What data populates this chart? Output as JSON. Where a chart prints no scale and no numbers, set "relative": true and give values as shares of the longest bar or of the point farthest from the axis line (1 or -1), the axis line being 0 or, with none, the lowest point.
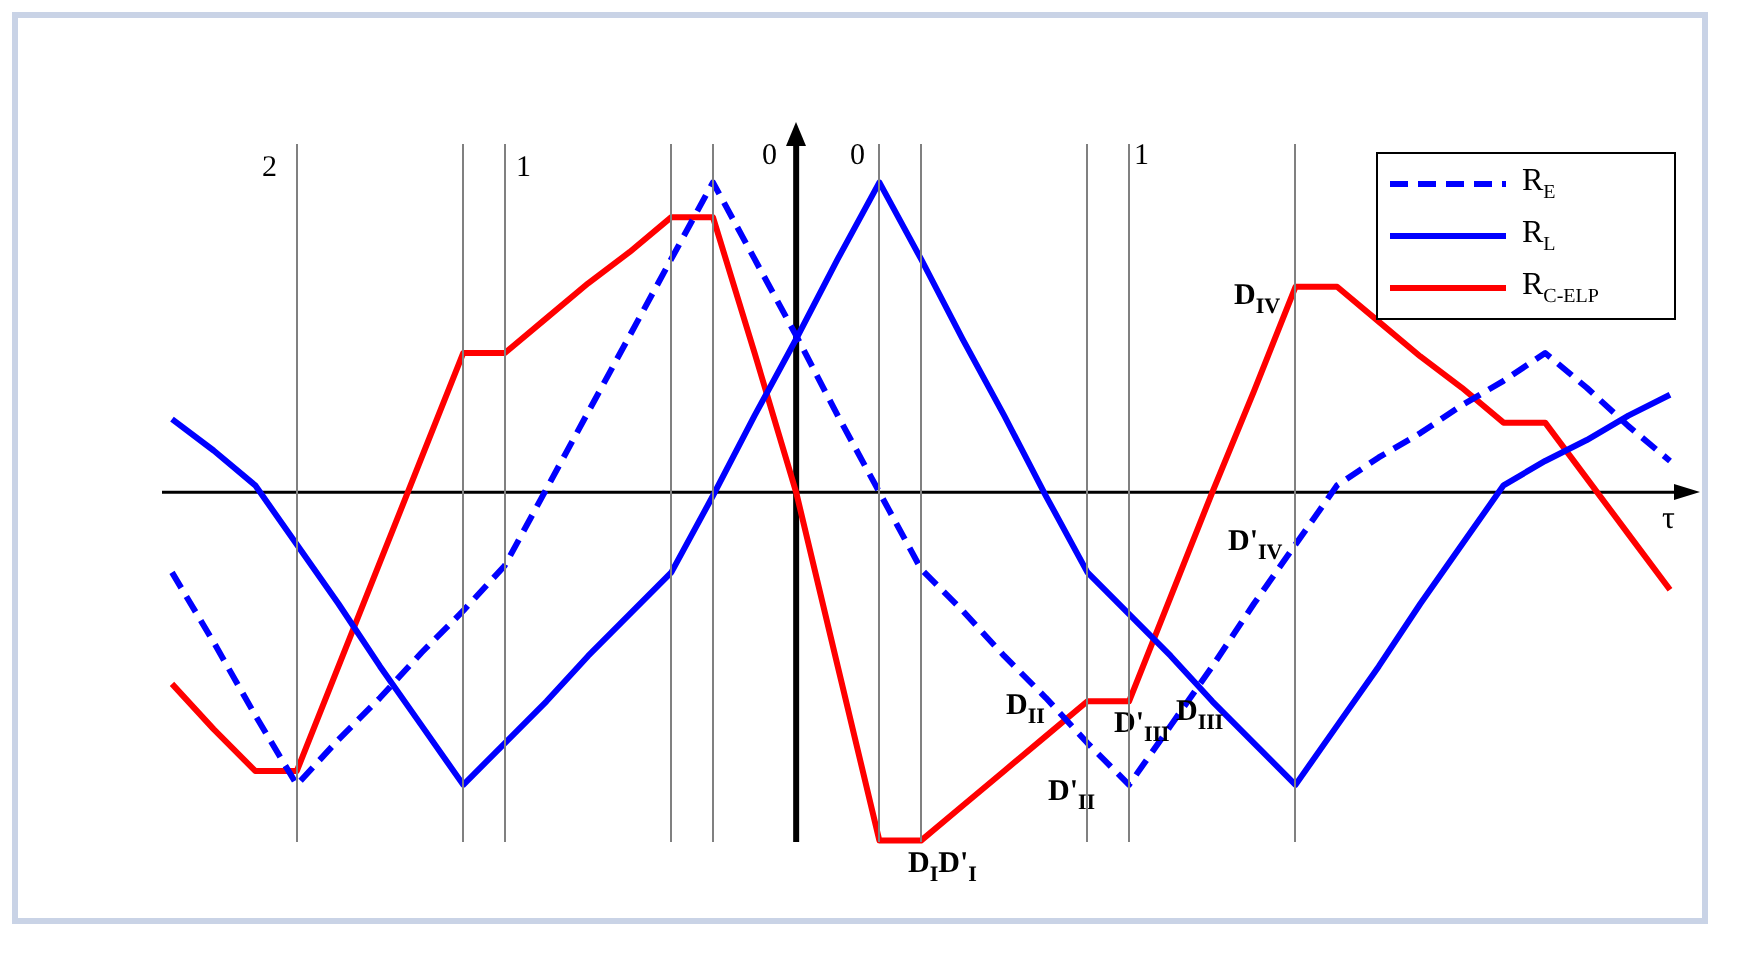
{
  "chart_data": {
    "type": "line",
    "relative": true,
    "xlabel": "τ",
    "legend": "top right",
    "marker": "none",
    "categories": [
      null,
      null,
      null,
      null,
      null,
      null,
      null,
      null,
      null,
      null,
      null,
      null,
      null,
      null,
      null,
      null,
      null,
      null,
      null,
      null,
      null,
      null,
      null,
      null,
      null,
      null,
      null,
      null,
      null,
      null,
      null,
      null,
      null,
      null,
      null,
      null,
      null
    ],
    "series": [
      {
        "name": "R$_{E}$",
        "color": "#0000ff",
        "line_style": "dashed",
        "values": [
          -0.23,
          -0.43,
          -0.64,
          -0.84,
          -0.71,
          -0.59,
          -0.46,
          -0.34,
          -0.21,
          0.01,
          0.23,
          0.45,
          0.67,
          0.89,
          0.67,
          0.45,
          0.22,
          0.0,
          -0.22,
          -0.34,
          -0.47,
          -0.59,
          -0.72,
          -0.84,
          -0.67,
          -0.5,
          -0.32,
          -0.15,
          0.02,
          0.1,
          0.17,
          0.25,
          0.32,
          0.4,
          0.3,
          0.19,
          0.09
        ]
      },
      {
        "name": "R$_{L}$",
        "color": "#0000ff",
        "line_style": "solid",
        "values": [
          0.21,
          0.12,
          0.02,
          -0.15,
          -0.32,
          -0.5,
          -0.67,
          -0.84,
          -0.72,
          -0.6,
          -0.47,
          -0.35,
          -0.23,
          -0.01,
          0.22,
          0.44,
          0.67,
          0.89,
          0.67,
          0.44,
          0.22,
          -0.01,
          -0.23,
          -0.35,
          -0.47,
          -0.6,
          -0.72,
          -0.84,
          -0.67,
          -0.5,
          -0.32,
          -0.15,
          0.02,
          0.09,
          0.15,
          0.22,
          0.28
        ]
      },
      {
        "name": "R$_{C-ELP}$",
        "color": "#ff0000",
        "line_style": "solid",
        "values": [
          -0.55,
          -0.68,
          -0.8,
          -0.8,
          -0.5,
          -0.2,
          0.1,
          0.4,
          0.4,
          0.5,
          0.6,
          0.69,
          0.79,
          0.79,
          0.4,
          0.0,
          -0.5,
          -1.0,
          -1.0,
          -0.9,
          -0.8,
          -0.7,
          -0.6,
          -0.6,
          -0.3,
          0.0,
          0.29,
          0.59,
          0.59,
          0.49,
          0.39,
          0.3,
          0.2,
          0.2,
          0.04,
          -0.12,
          -0.28
        ]
      }
    ],
    "annotations": [
      "2",
      "1",
      "0",
      "0",
      "1",
      "D$_{IV}$",
      "D'$_{IV}$",
      "D$_{II}$",
      "D'$_{III}$",
      "D$_{III}$",
      "D'$_{II}$",
      "D$_{I}$D'$_{I}$"
    ]
  }
}
